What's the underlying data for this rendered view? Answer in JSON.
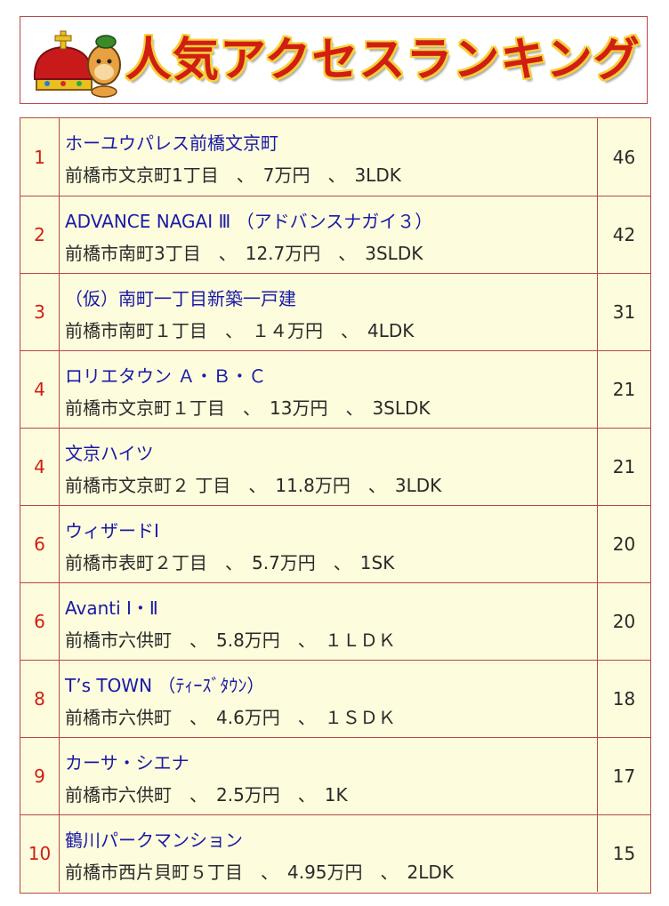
{
  "banner": {
    "title": "人気アクセスランキング",
    "mascot_icon": "crown-mascot-icon"
  },
  "colors": {
    "border": "#b64848",
    "row_bg": "#fdfcdc",
    "rank_text": "#d21e12",
    "name_text": "#1a1aa8",
    "title_red": "#d21e12",
    "title_outline": "#f4d23a"
  },
  "ranking": [
    {
      "rank": "1",
      "name": "ホーユウパレス前橋文京町",
      "detail": "前橋市文京町1丁目　、　7万円　、　3LDK",
      "count": "46"
    },
    {
      "rank": "2",
      "name": "ADVANCE NAGAI Ⅲ （アドバンスナガイ３）",
      "detail": "前橋市南町3丁目　、　12.7万円　、　3SLDK",
      "count": "42"
    },
    {
      "rank": "3",
      "name": "（仮）南町一丁目新築一戸建",
      "detail": "前橋市南町１丁目　、　１４万円　、　4LDK",
      "count": "31"
    },
    {
      "rank": "4",
      "name": "ロリエタウン Ａ・Ｂ・Ｃ",
      "detail": "前橋市文京町１丁目　、　13万円　、　3SLDK",
      "count": "21"
    },
    {
      "rank": "4",
      "name": "文京ハイツ",
      "detail": "前橋市文京町２ 丁目　、　11.8万円　、　3LDK",
      "count": "21"
    },
    {
      "rank": "6",
      "name": "ウィザードⅠ",
      "detail": "前橋市表町２丁目　、　5.7万円　、　1SK",
      "count": "20"
    },
    {
      "rank": "6",
      "name": "Avanti Ⅰ・Ⅱ",
      "detail": "前橋市六供町　、　5.8万円　、　１ＬＤＫ",
      "count": "20"
    },
    {
      "rank": "8",
      "name": "T’s TOWN （ﾃｨｰｽﾞﾀｳﾝ）",
      "detail": "前橋市六供町　、　4.6万円　、　１ＳＤＫ",
      "count": "18"
    },
    {
      "rank": "9",
      "name": "カーサ・シエナ",
      "detail": "前橋市六供町　、　2.5万円　、　1K",
      "count": "17"
    },
    {
      "rank": "10",
      "name": "鶴川パークマンション",
      "detail": "前橋市西片貝町５丁目　、　4.95万円　、　2LDK",
      "count": "15"
    }
  ]
}
